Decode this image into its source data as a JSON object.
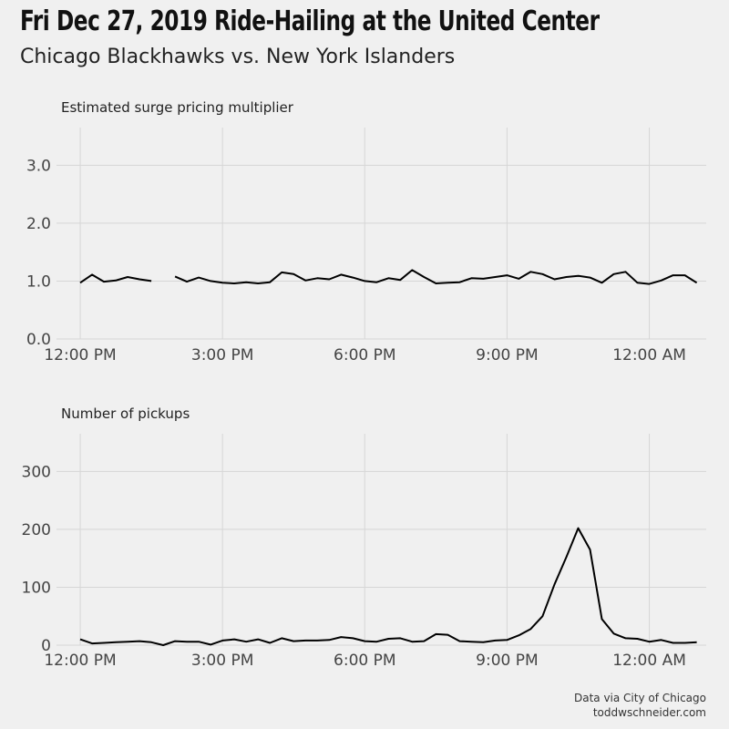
{
  "title": "Fri Dec 27, 2019 Ride-Hailing at the United Center",
  "subtitle": "Chicago Blackhawks vs. New York Islanders",
  "caption": {
    "line1": "Data via City of Chicago",
    "line2": "toddwschneider.com"
  },
  "chart_data": [
    {
      "type": "line",
      "title": "Estimated surge pricing multiplier",
      "x_ticks": [
        "12:00 PM",
        "3:00 PM",
        "6:00 PM",
        "9:00 PM",
        "12:00 AM"
      ],
      "y_ticks": [
        "0.0",
        "1.0",
        "2.0",
        "3.0"
      ],
      "ylim": [
        0,
        3.65
      ],
      "xlim_hours": [
        11.5,
        25.2
      ],
      "grid": true,
      "line_color": "#000000",
      "series": [
        {
          "x": [
            12.0,
            12.25,
            12.5,
            12.75,
            13.0,
            13.25,
            13.5,
            null,
            14.0,
            14.25,
            14.5,
            14.75,
            15.0,
            15.25,
            15.5,
            15.75,
            16.0,
            16.25,
            16.5,
            16.75,
            17.0,
            17.25,
            17.5,
            17.75,
            18.0,
            18.25,
            18.5,
            18.75,
            19.0,
            19.25,
            19.5,
            19.75,
            20.0,
            20.25,
            20.5,
            20.75,
            21.0,
            21.25,
            21.5,
            21.75,
            22.0,
            22.25,
            22.5,
            22.75,
            23.0,
            23.25,
            23.5,
            23.75,
            24.0,
            24.25,
            24.5,
            24.75,
            25.0
          ],
          "values": [
            0.97,
            1.11,
            0.99,
            1.01,
            1.07,
            1.03,
            1.0,
            null,
            1.08,
            0.99,
            1.06,
            1.0,
            0.97,
            0.96,
            0.98,
            0.96,
            0.98,
            1.15,
            1.12,
            1.01,
            1.05,
            1.03,
            1.11,
            1.06,
            1.0,
            0.98,
            1.05,
            1.02,
            1.19,
            1.07,
            0.96,
            0.97,
            0.98,
            1.05,
            1.04,
            1.07,
            1.1,
            1.04,
            1.16,
            1.12,
            1.03,
            1.07,
            1.09,
            1.06,
            0.97,
            1.12,
            1.16,
            0.97,
            0.95,
            1.01,
            1.1,
            1.1,
            0.97
          ]
        }
      ]
    },
    {
      "type": "line",
      "title": "Number of pickups",
      "x_ticks": [
        "12:00 PM",
        "3:00 PM",
        "6:00 PM",
        "9:00 PM",
        "12:00 AM"
      ],
      "y_ticks": [
        "0",
        "100",
        "200",
        "300"
      ],
      "ylim": [
        0,
        365
      ],
      "xlim_hours": [
        11.5,
        25.2
      ],
      "grid": true,
      "line_color": "#000000",
      "series": [
        {
          "x": [
            12.0,
            12.25,
            12.5,
            12.75,
            13.0,
            13.25,
            13.5,
            13.75,
            14.0,
            14.25,
            14.5,
            14.75,
            15.0,
            15.25,
            15.5,
            15.75,
            16.0,
            16.25,
            16.5,
            16.75,
            17.0,
            17.25,
            17.5,
            17.75,
            18.0,
            18.25,
            18.5,
            18.75,
            19.0,
            19.25,
            19.5,
            19.75,
            20.0,
            20.25,
            20.5,
            20.75,
            21.0,
            21.25,
            21.5,
            21.75,
            22.0,
            22.25,
            22.5,
            22.75,
            23.0,
            23.25,
            23.5,
            23.75,
            24.0,
            24.25,
            24.5,
            24.75,
            25.0
          ],
          "values": [
            10,
            3,
            4,
            5,
            6,
            7,
            5,
            0,
            7,
            6,
            6,
            1,
            8,
            10,
            6,
            10,
            4,
            12,
            7,
            8,
            8,
            9,
            14,
            12,
            7,
            6,
            11,
            12,
            6,
            7,
            19,
            18,
            7,
            6,
            5,
            8,
            9,
            17,
            28,
            50,
            105,
            152,
            202,
            165,
            45,
            20,
            12,
            11,
            6,
            9,
            4,
            4,
            5
          ]
        }
      ]
    }
  ]
}
